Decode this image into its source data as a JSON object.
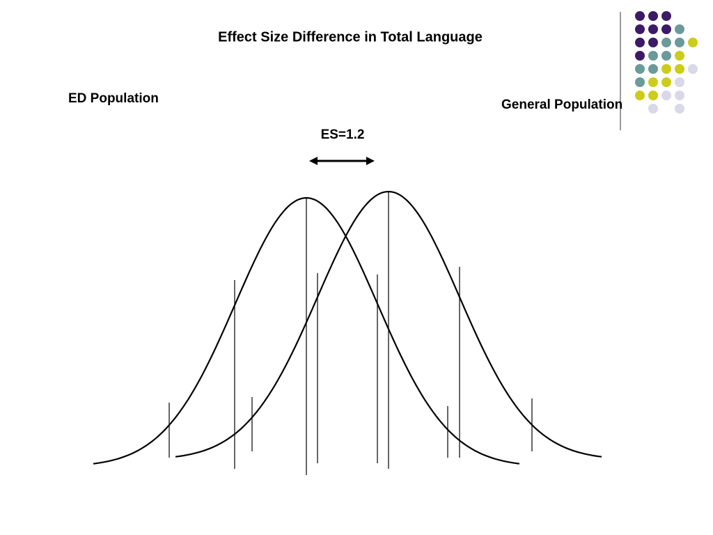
{
  "title": "Effect Size Difference in Total Language",
  "left_label": "ED Population",
  "right_label": "General Population",
  "effect_label": "ES=1.2"
}
